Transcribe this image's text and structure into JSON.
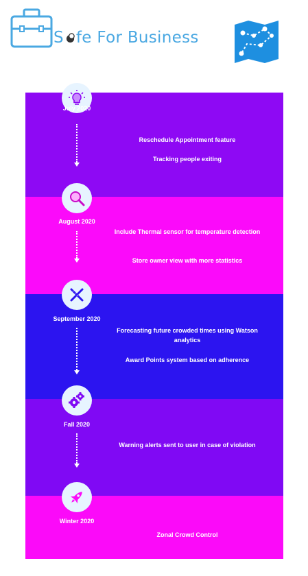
{
  "header": {
    "brand_prefix": "S",
    "brand_rest": "fe For Business",
    "briefcase_icon": "briefcase-icon",
    "map_icon": "map-route-icon"
  },
  "colors": {
    "july": "#8e09f4",
    "august": "#fb0afa",
    "september": "#2c14f0",
    "fall": "#8009f4",
    "winter": "#fb0af9",
    "brand_blue": "#4aa8e2"
  },
  "milestones": [
    {
      "date": "July 2020",
      "icon": "lightbulb-icon",
      "features": [
        "Reschedule Appointment feature",
        "Tracking people exiting"
      ]
    },
    {
      "date": "August 2020",
      "icon": "magnifier-icon",
      "features": [
        "Include Thermal sensor for temperature detection",
        "Store owner view with more statistics"
      ]
    },
    {
      "date": "September 2020",
      "icon": "tools-icon",
      "features": [
        "Forecasting future crowded times using Watson analytics",
        "Award Points system based on adherence"
      ]
    },
    {
      "date": "Fall 2020",
      "icon": "gears-icon",
      "features": [
        "Warning alerts sent to user in case of violation"
      ]
    },
    {
      "date": "Winter 2020",
      "icon": "rocket-icon",
      "features": [
        "Zonal Crowd Control"
      ]
    }
  ]
}
